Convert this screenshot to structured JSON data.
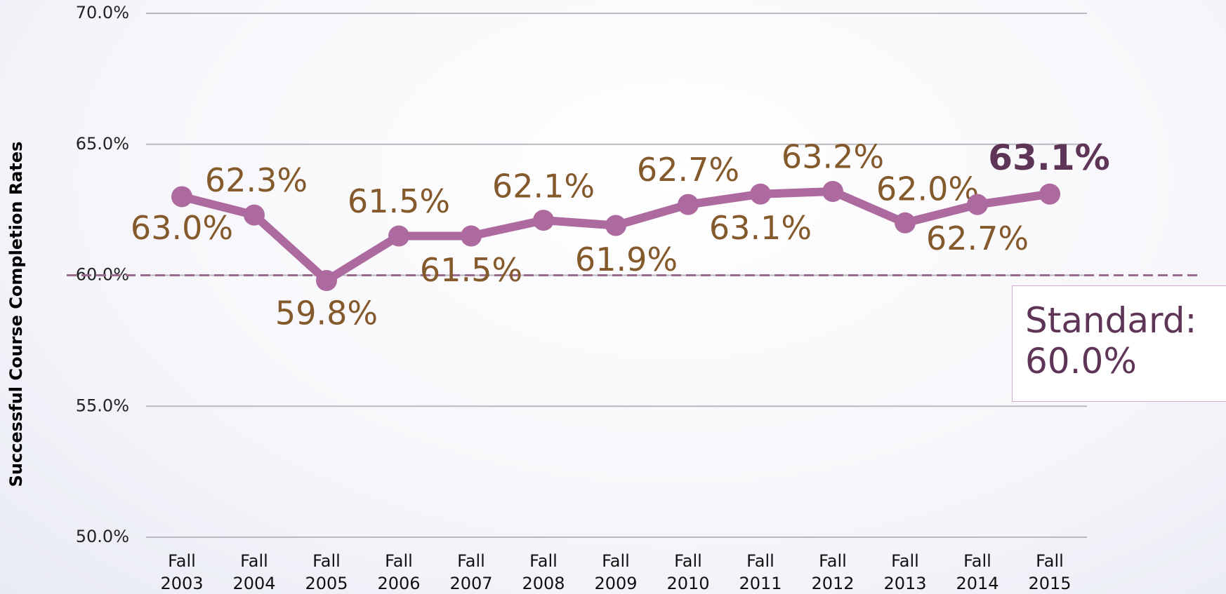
{
  "chart_data": {
    "type": "line",
    "y_axis_label": "Successful Course Completion Rates",
    "categories": [
      "Fall 2003",
      "Fall 2004",
      "Fall 2005",
      "Fall 2006",
      "Fall 2007",
      "Fall 2008",
      "Fall 2009",
      "Fall 2010",
      "Fall 2011",
      "Fall 2012",
      "Fall 2013",
      "Fall 2014",
      "Fall 2015"
    ],
    "series": [
      {
        "name": "Successful Course Completion Rates",
        "color": "#ad6a9e",
        "values": [
          63.0,
          62.3,
          59.8,
          61.5,
          61.5,
          62.1,
          61.9,
          62.7,
          63.1,
          63.2,
          62.0,
          62.7,
          63.1
        ],
        "value_labels": [
          "63.0%",
          "62.3%",
          "59.8%",
          "61.5%",
          "61.5%",
          "62.1%",
          "61.9%",
          "62.7%",
          "63.1%",
          "63.2%",
          "62.0%",
          "62.7%",
          "63.1%"
        ]
      }
    ],
    "ylim": [
      50,
      70
    ],
    "yticks": [
      {
        "value": 50,
        "label": "50.0%"
      },
      {
        "value": 55,
        "label": "55.0%"
      },
      {
        "value": 60,
        "label": "60.0%"
      },
      {
        "value": 65,
        "label": "65.0%"
      },
      {
        "value": 70,
        "label": "70.0%"
      }
    ],
    "grid": true,
    "reference_line": {
      "value": 60,
      "label": "Standard: 60.0%",
      "color": "#9c6a8f"
    }
  }
}
